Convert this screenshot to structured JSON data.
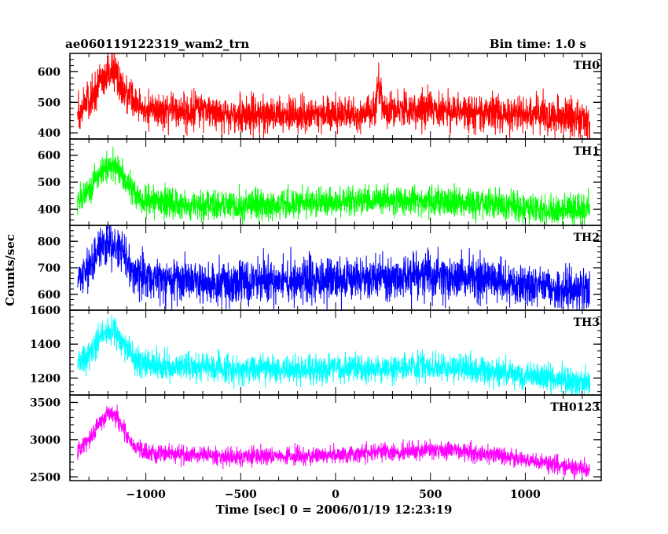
{
  "header": {
    "title": "ae060119122319_wam2_trn",
    "bin_time": "Bin time: 1.0 s"
  },
  "chart_data": {
    "type": "line",
    "title": "ae060119122319_wam2_trn",
    "subtitle": "Bin time: 1.0 s",
    "xlabel": "Time [sec] 0 = 2006/01/19 12:23:19",
    "ylabel": "Counts/sec",
    "xlim": [
      -1400,
      1400
    ],
    "x_ticks": [
      -1000,
      -500,
      0,
      500,
      1000
    ],
    "x_tick_labels": [
      "−1000",
      "−500",
      "0",
      "500",
      "1000"
    ],
    "grid": false,
    "bin_time_s": 1.0,
    "panels": [
      {
        "name": "TH0",
        "color": "#ff0000",
        "ylim": [
          380,
          660
        ],
        "y_ticks": [
          400,
          500,
          600
        ],
        "y_tick_labels": [
          "400",
          "500",
          "600"
        ],
        "noise": 30,
        "envelope": [
          [
            -1360,
            470
          ],
          [
            -1300,
            500
          ],
          [
            -1250,
            555
          ],
          [
            -1200,
            600
          ],
          [
            -1160,
            600
          ],
          [
            -1120,
            545
          ],
          [
            -1060,
            505
          ],
          [
            -1000,
            480
          ],
          [
            -800,
            470
          ],
          [
            -500,
            462
          ],
          [
            -200,
            462
          ],
          [
            0,
            462
          ],
          [
            210,
            468
          ],
          [
            220,
            545
          ],
          [
            240,
            545
          ],
          [
            250,
            478
          ],
          [
            500,
            475
          ],
          [
            700,
            470
          ],
          [
            900,
            465
          ],
          [
            1100,
            460
          ],
          [
            1200,
            450
          ],
          [
            1340,
            445
          ]
        ]
      },
      {
        "name": "TH1",
        "color": "#00ff00",
        "ylim": [
          340,
          660
        ],
        "y_ticks": [
          400,
          500,
          600
        ],
        "y_tick_labels": [
          "400",
          "500",
          "600"
        ],
        "noise": 28,
        "envelope": [
          [
            -1360,
            430
          ],
          [
            -1300,
            465
          ],
          [
            -1250,
            520
          ],
          [
            -1200,
            560
          ],
          [
            -1160,
            555
          ],
          [
            -1120,
            520
          ],
          [
            -1060,
            460
          ],
          [
            -1000,
            430
          ],
          [
            -800,
            415
          ],
          [
            -500,
            412
          ],
          [
            -200,
            418
          ],
          [
            0,
            425
          ],
          [
            200,
            435
          ],
          [
            400,
            430
          ],
          [
            600,
            430
          ],
          [
            800,
            418
          ],
          [
            1000,
            405
          ],
          [
            1200,
            398
          ],
          [
            1340,
            395
          ]
        ]
      },
      {
        "name": "TH2",
        "color": "#0000ff",
        "ylim": [
          540,
          860
        ],
        "y_ticks": [
          600,
          700,
          800
        ],
        "y_tick_labels": [
          "600",
          "700",
          "800"
        ],
        "noise": 42,
        "envelope": [
          [
            -1360,
            670
          ],
          [
            -1300,
            700
          ],
          [
            -1250,
            760
          ],
          [
            -1200,
            795
          ],
          [
            -1160,
            790
          ],
          [
            -1120,
            740
          ],
          [
            -1060,
            680
          ],
          [
            -1000,
            660
          ],
          [
            -800,
            650
          ],
          [
            -500,
            645
          ],
          [
            -200,
            650
          ],
          [
            0,
            655
          ],
          [
            300,
            662
          ],
          [
            500,
            668
          ],
          [
            700,
            662
          ],
          [
            900,
            650
          ],
          [
            1100,
            630
          ],
          [
            1200,
            620
          ],
          [
            1340,
            615
          ]
        ]
      },
      {
        "name": "TH3",
        "color": "#00ffff",
        "ylim": [
          1100,
          1600
        ],
        "y_ticks": [
          1200,
          1400,
          1600
        ],
        "y_tick_labels": [
          "1200",
          "1400",
          "1600"
        ],
        "noise": 42,
        "envelope": [
          [
            -1360,
            1280
          ],
          [
            -1300,
            1340
          ],
          [
            -1250,
            1420
          ],
          [
            -1200,
            1480
          ],
          [
            -1160,
            1470
          ],
          [
            -1120,
            1400
          ],
          [
            -1060,
            1310
          ],
          [
            -1000,
            1280
          ],
          [
            -800,
            1265
          ],
          [
            -500,
            1250
          ],
          [
            -200,
            1250
          ],
          [
            0,
            1255
          ],
          [
            300,
            1262
          ],
          [
            500,
            1268
          ],
          [
            700,
            1250
          ],
          [
            900,
            1225
          ],
          [
            1100,
            1200
          ],
          [
            1200,
            1180
          ],
          [
            1340,
            1165
          ]
        ]
      },
      {
        "name": "TH0123",
        "color": "#ff00ff",
        "ylim": [
          2450,
          3600
        ],
        "y_ticks": [
          2500,
          3000,
          3500
        ],
        "y_tick_labels": [
          "2500",
          "3000",
          "3500"
        ],
        "noise": 60,
        "envelope": [
          [
            -1360,
            2850
          ],
          [
            -1300,
            3000
          ],
          [
            -1250,
            3200
          ],
          [
            -1200,
            3350
          ],
          [
            -1160,
            3330
          ],
          [
            -1120,
            3150
          ],
          [
            -1060,
            2900
          ],
          [
            -1000,
            2820
          ],
          [
            -800,
            2800
          ],
          [
            -500,
            2770
          ],
          [
            -300,
            2780
          ],
          [
            -100,
            2780
          ],
          [
            0,
            2785
          ],
          [
            200,
            2830
          ],
          [
            400,
            2840
          ],
          [
            600,
            2860
          ],
          [
            700,
            2840
          ],
          [
            900,
            2770
          ],
          [
            1100,
            2690
          ],
          [
            1200,
            2640
          ],
          [
            1340,
            2600
          ]
        ]
      }
    ]
  }
}
